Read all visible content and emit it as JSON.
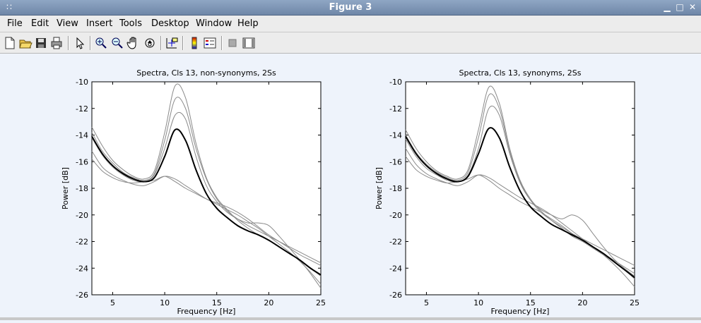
{
  "window": {
    "title": "Figure 3"
  },
  "menu": [
    "File",
    "Edit",
    "View",
    "Insert",
    "Tools",
    "Desktop",
    "Window",
    "Help"
  ],
  "toolbar": {
    "icons": [
      "new-file-icon",
      "open-file-icon",
      "save-icon",
      "print-icon",
      "select-arrow-icon",
      "zoom-in-icon",
      "zoom-out-icon",
      "pan-hand-icon",
      "rotate-3d-icon",
      "data-cursor-icon",
      "colorbar-icon",
      "legend-icon",
      "hide-plot-tools-icon",
      "show-plot-tools-icon"
    ]
  },
  "colors": {
    "thin_line": "#8a8a8a",
    "mean_line": "#000000",
    "plot_bg": "#ffffff",
    "figure_bg": "#eef3fb"
  },
  "chart_data": [
    {
      "type": "line",
      "title": "Spectra, Cls 13, non-synonyms, 2Ss",
      "xlabel": "Frequency [Hz]",
      "ylabel": "Power [dB]",
      "xlim": [
        3,
        25
      ],
      "ylim": [
        -26,
        -10
      ],
      "xticks": [
        5,
        10,
        15,
        20,
        25
      ],
      "yticks": [
        -10,
        -12,
        -14,
        -16,
        -18,
        -20,
        -22,
        -24,
        -26
      ],
      "x": [
        3,
        4,
        5,
        6,
        7,
        8,
        9,
        10,
        11,
        12,
        13,
        14,
        15,
        16,
        17,
        18,
        19,
        20,
        21,
        22,
        23,
        24,
        25
      ],
      "series": [
        {
          "role": "thin",
          "values": [
            -13.4,
            -14.8,
            -15.9,
            -16.6,
            -17.1,
            -17.3,
            -16.7,
            -13.8,
            -10.3,
            -11.2,
            -14.6,
            -17.2,
            -18.7,
            -19.6,
            -20.4,
            -21.0,
            -21.5,
            -21.9,
            -22.4,
            -22.9,
            -23.4,
            -24.0,
            -24.6
          ]
        },
        {
          "role": "thin",
          "values": [
            -13.8,
            -15.2,
            -16.1,
            -16.8,
            -17.2,
            -17.4,
            -16.9,
            -14.4,
            -11.3,
            -12.0,
            -15.0,
            -17.3,
            -18.8,
            -19.7,
            -20.3,
            -20.8,
            -21.2,
            -21.6,
            -22.0,
            -22.4,
            -22.8,
            -23.2,
            -23.6
          ]
        },
        {
          "role": "thin",
          "values": [
            -14.2,
            -15.5,
            -16.4,
            -17.0,
            -17.4,
            -17.5,
            -17.0,
            -15.0,
            -12.5,
            -12.8,
            -15.6,
            -17.8,
            -19.0,
            -19.8,
            -20.3,
            -20.6,
            -20.6,
            -20.8,
            -21.6,
            -22.5,
            -23.4,
            -24.4,
            -25.5
          ]
        },
        {
          "role": "thin",
          "values": [
            -15.2,
            -16.4,
            -17.0,
            -17.4,
            -17.7,
            -17.8,
            -17.5,
            -17.1,
            -17.3,
            -17.8,
            -18.3,
            -18.8,
            -19.2,
            -19.6,
            -20.0,
            -20.5,
            -21.0,
            -21.6,
            -22.2,
            -22.8,
            -23.5,
            -24.3,
            -25.2
          ]
        },
        {
          "role": "thin",
          "values": [
            -15.8,
            -16.7,
            -17.2,
            -17.5,
            -17.6,
            -17.5,
            -17.4,
            -17.1,
            -17.5,
            -18.0,
            -18.4,
            -18.8,
            -19.1,
            -19.4,
            -19.8,
            -20.3,
            -20.9,
            -21.5,
            -22.0,
            -22.5,
            -23.0,
            -23.4,
            -23.8
          ]
        },
        {
          "role": "mean",
          "values": [
            -14.1,
            -15.4,
            -16.3,
            -16.9,
            -17.3,
            -17.5,
            -17.2,
            -15.6,
            -13.6,
            -14.4,
            -16.6,
            -18.4,
            -19.5,
            -20.2,
            -20.8,
            -21.2,
            -21.5,
            -21.9,
            -22.4,
            -22.9,
            -23.4,
            -24.0,
            -24.5
          ]
        }
      ]
    },
    {
      "type": "line",
      "title": "Spectra, Cls 13, synonyms, 2Ss",
      "xlabel": "Frequency [Hz]",
      "ylabel": "Power [dB]",
      "xlim": [
        3,
        25
      ],
      "ylim": [
        -26,
        -10
      ],
      "xticks": [
        5,
        10,
        15,
        20,
        25
      ],
      "yticks": [
        -10,
        -12,
        -14,
        -16,
        -18,
        -20,
        -22,
        -24,
        -26
      ],
      "x": [
        3,
        4,
        5,
        6,
        7,
        8,
        9,
        10,
        11,
        12,
        13,
        14,
        15,
        16,
        17,
        18,
        19,
        20,
        21,
        22,
        23,
        24,
        25
      ],
      "series": [
        {
          "role": "thin",
          "values": [
            -13.6,
            -15.0,
            -16.0,
            -16.7,
            -17.1,
            -17.3,
            -16.6,
            -13.6,
            -10.4,
            -11.6,
            -15.0,
            -17.4,
            -18.8,
            -19.7,
            -20.4,
            -21.0,
            -21.6,
            -22.0,
            -22.5,
            -23.0,
            -23.5,
            -24.1,
            -24.8
          ]
        },
        {
          "role": "thin",
          "values": [
            -14.0,
            -15.3,
            -16.2,
            -16.8,
            -17.2,
            -17.4,
            -16.8,
            -14.2,
            -11.0,
            -12.0,
            -15.2,
            -17.5,
            -18.9,
            -19.8,
            -20.4,
            -20.9,
            -21.4,
            -21.8,
            -22.2,
            -22.6,
            -23.0,
            -23.4,
            -23.8
          ]
        },
        {
          "role": "thin",
          "values": [
            -14.3,
            -15.6,
            -16.5,
            -17.0,
            -17.4,
            -17.5,
            -17.0,
            -15.0,
            -12.0,
            -12.5,
            -15.4,
            -17.6,
            -18.9,
            -19.6,
            -20.0,
            -20.3,
            -20.0,
            -20.4,
            -21.4,
            -22.4,
            -23.3,
            -24.0,
            -24.6
          ]
        },
        {
          "role": "thin",
          "values": [
            -15.0,
            -16.2,
            -16.9,
            -17.3,
            -17.6,
            -17.8,
            -17.5,
            -17.0,
            -17.2,
            -17.7,
            -18.2,
            -18.7,
            -19.1,
            -19.5,
            -20.0,
            -20.6,
            -21.2,
            -21.8,
            -22.4,
            -23.0,
            -23.7,
            -24.5,
            -25.4
          ]
        },
        {
          "role": "thin",
          "values": [
            -15.6,
            -16.6,
            -17.1,
            -17.4,
            -17.6,
            -17.5,
            -17.3,
            -17.0,
            -17.4,
            -18.0,
            -18.5,
            -19.0,
            -19.4,
            -19.8,
            -20.3,
            -20.8,
            -21.4,
            -21.9,
            -22.4,
            -22.9,
            -23.4,
            -23.9,
            -24.4
          ]
        },
        {
          "role": "mean",
          "values": [
            -14.1,
            -15.4,
            -16.3,
            -16.9,
            -17.3,
            -17.5,
            -17.1,
            -15.4,
            -13.5,
            -14.2,
            -16.4,
            -18.2,
            -19.4,
            -20.1,
            -20.7,
            -21.1,
            -21.5,
            -21.9,
            -22.4,
            -22.9,
            -23.5,
            -24.1,
            -24.7
          ]
        }
      ]
    }
  ]
}
